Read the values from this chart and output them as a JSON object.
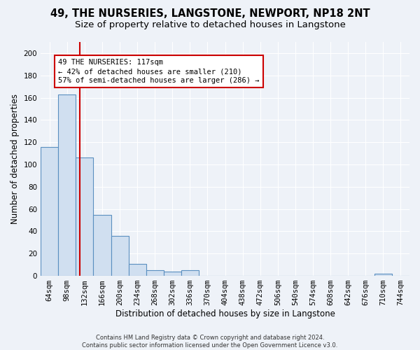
{
  "title": "49, THE NURSERIES, LANGSTONE, NEWPORT, NP18 2NT",
  "subtitle": "Size of property relative to detached houses in Langstone",
  "xlabel": "Distribution of detached houses by size in Langstone",
  "ylabel": "Number of detached properties",
  "footnote": "Contains HM Land Registry data © Crown copyright and database right 2024.\nContains public sector information licensed under the Open Government Licence v3.0.",
  "bin_labels": [
    "64sqm",
    "98sqm",
    "132sqm",
    "166sqm",
    "200sqm",
    "234sqm",
    "268sqm",
    "302sqm",
    "336sqm",
    "370sqm",
    "404sqm",
    "438sqm",
    "472sqm",
    "506sqm",
    "540sqm",
    "574sqm",
    "608sqm",
    "642sqm",
    "676sqm",
    "710sqm",
    "744sqm"
  ],
  "bar_values": [
    116,
    163,
    106,
    55,
    36,
    11,
    5,
    4,
    5,
    0,
    0,
    0,
    0,
    0,
    0,
    0,
    0,
    0,
    0,
    2,
    0
  ],
  "bar_color": "#d0dff0",
  "bar_edge_color": "#5a8fc0",
  "vline_color": "#cc0000",
  "vline_pos": 1.72,
  "annotation_text": "49 THE NURSERIES: 117sqm\n← 42% of detached houses are smaller (210)\n57% of semi-detached houses are larger (286) →",
  "annotation_box_color": "#ffffff",
  "annotation_box_edge": "#cc0000",
  "ylim": [
    0,
    210
  ],
  "yticks": [
    0,
    20,
    40,
    60,
    80,
    100,
    120,
    140,
    160,
    180,
    200
  ],
  "background_color": "#eef2f8",
  "plot_bg_color": "#eef2f8",
  "grid_color": "#ffffff",
  "title_fontsize": 10.5,
  "subtitle_fontsize": 9.5,
  "tick_fontsize": 7.5,
  "ylabel_fontsize": 8.5,
  "xlabel_fontsize": 8.5,
  "footnote_fontsize": 6.0
}
